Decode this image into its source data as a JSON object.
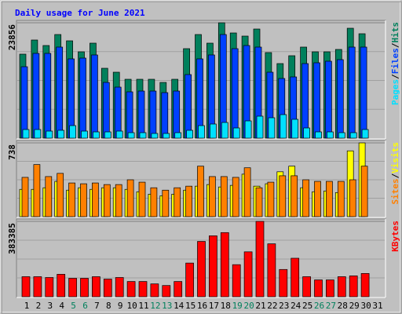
{
  "chart_data": {
    "type": "bar",
    "title": "Daily usage for June 2021",
    "categories": [
      "1",
      "2",
      "3",
      "4",
      "5",
      "6",
      "7",
      "8",
      "9",
      "10",
      "11",
      "12",
      "13",
      "14",
      "15",
      "16",
      "17",
      "18",
      "19",
      "20",
      "21",
      "22",
      "23",
      "24",
      "25",
      "26",
      "27",
      "28",
      "29",
      "30",
      "31"
    ],
    "category_colors": [
      "#000000",
      "#000000",
      "#000000",
      "#000000",
      "#00805c",
      "#00805c",
      "#000000",
      "#000000",
      "#000000",
      "#000000",
      "#000000",
      "#00805c",
      "#00805c",
      "#000000",
      "#000000",
      "#000000",
      "#000000",
      "#000000",
      "#00805c",
      "#00805c",
      "#000000",
      "#000000",
      "#000000",
      "#000000",
      "#000000",
      "#00805c",
      "#00805c",
      "#000000",
      "#000000",
      "#000000",
      "#000000"
    ],
    "separator": "/",
    "panels": [
      {
        "ylim": [
          0,
          23856
        ],
        "yticks": [
          23856
        ],
        "legend_order": [
          2,
          1,
          0
        ],
        "series": [
          {
            "name": "Hits",
            "color": "#00805c",
            "values": [
              17366,
              20288,
              19151,
              21424,
              20125,
              17853,
              19638,
              14445,
              13633,
              12172,
              12172,
              12172,
              11523,
              12172,
              18502,
              21424,
              19638,
              23856,
              21748,
              21099,
              22560,
              17691,
              15418,
              17041,
              18827,
              17853,
              17853,
              18340,
              22722,
              21586,
              null
            ]
          },
          {
            "name": "Files",
            "color": "#0040ff",
            "values": [
              14769,
              17528,
              17528,
              18827,
              16392,
              16555,
              17204,
              11523,
              10550,
              9576,
              9738,
              9738,
              9413,
              9738,
              13146,
              16392,
              17204,
              21424,
              18502,
              19151,
              18827,
              13633,
              12335,
              12659,
              15418,
              15581,
              15905,
              16230,
              18827,
              18827,
              null
            ]
          },
          {
            "name": "Pages",
            "color": "#00e0ff",
            "values": [
              1785,
              1785,
              1461,
              1623,
              2597,
              1461,
              1298,
              1298,
              1461,
              1136,
              1136,
              974,
              974,
              1136,
              1623,
              2597,
              2921,
              3246,
              2110,
              3571,
              4544,
              4220,
              4869,
              3895,
              2110,
              1298,
              1298,
              1136,
              1136,
              1785,
              null
            ]
          }
        ]
      },
      {
        "ylim": [
          0,
          738
        ],
        "yticks": [
          738
        ],
        "legend_order": [
          1,
          0
        ],
        "series": [
          {
            "name": "Visits",
            "color": "#ffff00",
            "values": [
              273,
              273,
              289,
              353,
              265,
              289,
              273,
              289,
              289,
              273,
              249,
              225,
              209,
              225,
              265,
              305,
              321,
              297,
              313,
              425,
              305,
              329,
              449,
              505,
              289,
              249,
              257,
              241,
              658,
              738,
              null
            ]
          },
          {
            "name": "Sites",
            "color": "#ff8000",
            "values": [
              393,
              521,
              401,
              433,
              337,
              329,
              337,
              321,
              321,
              369,
              345,
              289,
              265,
              289,
              305,
              505,
              401,
              401,
              393,
              489,
              289,
              345,
              409,
              409,
              369,
              353,
              353,
              353,
              369,
              505,
              null
            ]
          }
        ]
      },
      {
        "ylim": [
          0,
          383385
        ],
        "yticks": [
          383385
        ],
        "legend_order": [
          0
        ],
        "series": [
          {
            "name": "KBytes",
            "color": "#ff0000",
            "values": [
              101965,
              101965,
              97886,
              114201,
              93808,
              93808,
              101965,
              89729,
              97886,
              77493,
              77493,
              65258,
              57100,
              77493,
              171301,
              281423,
              309974,
              326288,
              163144,
              228402,
              383385,
              269188,
              138672,
              195773,
              101965,
              85651,
              85651,
              101965,
              106044,
              118279,
              null
            ]
          }
        ]
      }
    ]
  }
}
